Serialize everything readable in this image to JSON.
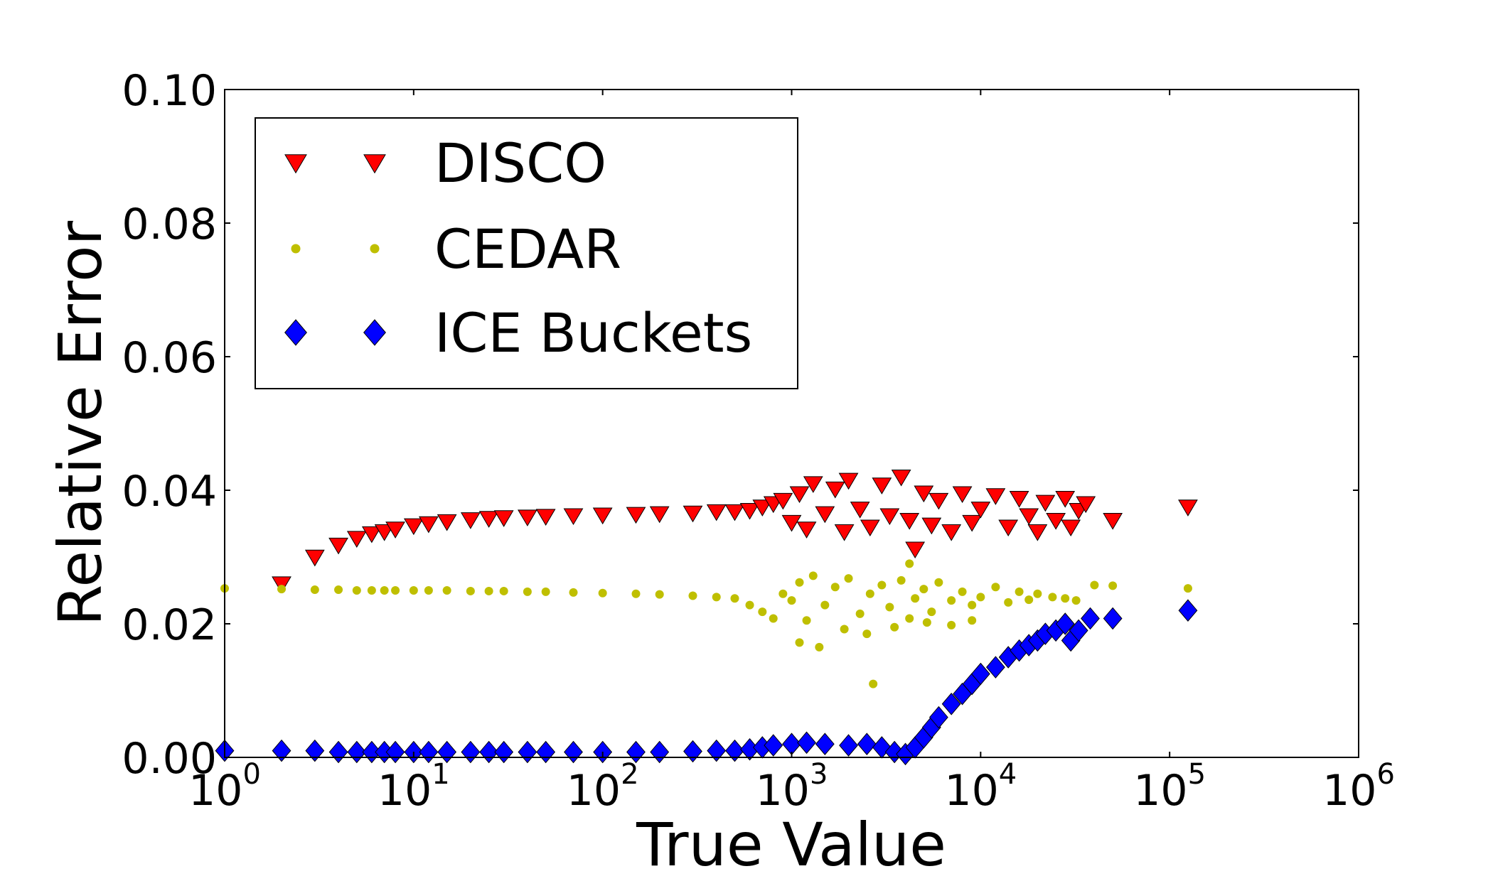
{
  "chart_data": {
    "type": "scatter",
    "title": "",
    "xlabel": "True Value",
    "ylabel": "Relative Error",
    "x_scale": "log",
    "xlim": [
      1,
      1000000
    ],
    "ylim": [
      0.0,
      0.1
    ],
    "grid": false,
    "legend_position": "top-left",
    "x_ticks": [
      {
        "value": 1,
        "base": "10",
        "exp": "0"
      },
      {
        "value": 10,
        "base": "10",
        "exp": "1"
      },
      {
        "value": 100,
        "base": "10",
        "exp": "2"
      },
      {
        "value": 1000,
        "base": "10",
        "exp": "3"
      },
      {
        "value": 10000,
        "base": "10",
        "exp": "4"
      },
      {
        "value": 100000,
        "base": "10",
        "exp": "5"
      },
      {
        "value": 1000000,
        "base": "10",
        "exp": "6"
      }
    ],
    "y_ticks": [
      {
        "value": 0.0,
        "label": "0.00"
      },
      {
        "value": 0.02,
        "label": "0.02"
      },
      {
        "value": 0.04,
        "label": "0.04"
      },
      {
        "value": 0.06,
        "label": "0.06"
      },
      {
        "value": 0.08,
        "label": "0.08"
      },
      {
        "value": 0.1,
        "label": "0.10"
      }
    ],
    "series": [
      {
        "name": "DISCO",
        "marker": "triangle-down",
        "color": "#ff0000",
        "points": [
          [
            2,
            0.026
          ],
          [
            3,
            0.03
          ],
          [
            4,
            0.0318
          ],
          [
            5,
            0.0328
          ],
          [
            6,
            0.0335
          ],
          [
            7,
            0.0338
          ],
          [
            8,
            0.0342
          ],
          [
            10,
            0.0347
          ],
          [
            12,
            0.035
          ],
          [
            15,
            0.0353
          ],
          [
            20,
            0.0356
          ],
          [
            25,
            0.0358
          ],
          [
            30,
            0.0359
          ],
          [
            40,
            0.036
          ],
          [
            50,
            0.0361
          ],
          [
            70,
            0.0362
          ],
          [
            100,
            0.0363
          ],
          [
            150,
            0.0364
          ],
          [
            200,
            0.0365
          ],
          [
            300,
            0.0366
          ],
          [
            400,
            0.0368
          ],
          [
            500,
            0.0368
          ],
          [
            600,
            0.037
          ],
          [
            700,
            0.0375
          ],
          [
            800,
            0.038
          ],
          [
            900,
            0.0385
          ],
          [
            1000,
            0.0352
          ],
          [
            1100,
            0.0395
          ],
          [
            1200,
            0.0342
          ],
          [
            1300,
            0.041
          ],
          [
            1500,
            0.0365
          ],
          [
            1700,
            0.0402
          ],
          [
            1900,
            0.0338
          ],
          [
            2000,
            0.0415
          ],
          [
            2300,
            0.0372
          ],
          [
            2600,
            0.0345
          ],
          [
            3000,
            0.0408
          ],
          [
            3300,
            0.0362
          ],
          [
            3800,
            0.042
          ],
          [
            4200,
            0.0355
          ],
          [
            4500,
            0.0312
          ],
          [
            5000,
            0.0396
          ],
          [
            5500,
            0.0348
          ],
          [
            6000,
            0.0385
          ],
          [
            7000,
            0.0338
          ],
          [
            8000,
            0.0395
          ],
          [
            9000,
            0.0352
          ],
          [
            10000,
            0.0372
          ],
          [
            12000,
            0.0392
          ],
          [
            14000,
            0.0345
          ],
          [
            16000,
            0.0388
          ],
          [
            18000,
            0.0362
          ],
          [
            20000,
            0.0338
          ],
          [
            22000,
            0.0382
          ],
          [
            25000,
            0.0355
          ],
          [
            28000,
            0.0388
          ],
          [
            30000,
            0.0345
          ],
          [
            33000,
            0.037
          ],
          [
            36000,
            0.038
          ],
          [
            50000,
            0.0355
          ],
          [
            125000,
            0.0375
          ]
        ]
      },
      {
        "name": "CEDAR",
        "marker": "circle",
        "color": "#bfbf00",
        "points": [
          [
            1,
            0.0253
          ],
          [
            2,
            0.0252
          ],
          [
            3,
            0.0251
          ],
          [
            4,
            0.0251
          ],
          [
            5,
            0.025
          ],
          [
            6,
            0.025
          ],
          [
            7,
            0.025
          ],
          [
            8,
            0.025
          ],
          [
            10,
            0.025
          ],
          [
            12,
            0.025
          ],
          [
            15,
            0.025
          ],
          [
            20,
            0.0249
          ],
          [
            25,
            0.0249
          ],
          [
            30,
            0.0249
          ],
          [
            40,
            0.0248
          ],
          [
            50,
            0.0248
          ],
          [
            70,
            0.0247
          ],
          [
            100,
            0.0246
          ],
          [
            150,
            0.0245
          ],
          [
            200,
            0.0244
          ],
          [
            300,
            0.0242
          ],
          [
            400,
            0.024
          ],
          [
            500,
            0.0238
          ],
          [
            600,
            0.0228
          ],
          [
            700,
            0.0218
          ],
          [
            800,
            0.0208
          ],
          [
            900,
            0.0245
          ],
          [
            1000,
            0.0235
          ],
          [
            1100,
            0.0262
          ],
          [
            1200,
            0.0205
          ],
          [
            1300,
            0.0272
          ],
          [
            1500,
            0.0228
          ],
          [
            1700,
            0.0255
          ],
          [
            1900,
            0.0192
          ],
          [
            2000,
            0.0268
          ],
          [
            2300,
            0.0215
          ],
          [
            2600,
            0.0245
          ],
          [
            3000,
            0.0258
          ],
          [
            3300,
            0.0225
          ],
          [
            3800,
            0.0265
          ],
          [
            4200,
            0.0208
          ],
          [
            4500,
            0.0238
          ],
          [
            5000,
            0.0252
          ],
          [
            5500,
            0.0218
          ],
          [
            6000,
            0.0262
          ],
          [
            7000,
            0.0235
          ],
          [
            8000,
            0.0248
          ],
          [
            9000,
            0.0228
          ],
          [
            10000,
            0.024
          ],
          [
            12000,
            0.0255
          ],
          [
            14000,
            0.0232
          ],
          [
            16000,
            0.0248
          ],
          [
            18000,
            0.0236
          ],
          [
            20000,
            0.0245
          ],
          [
            24000,
            0.024
          ],
          [
            28000,
            0.0238
          ],
          [
            32000,
            0.0235
          ],
          [
            1100,
            0.0172
          ],
          [
            1400,
            0.0165
          ],
          [
            2500,
            0.0185
          ],
          [
            2700,
            0.011
          ],
          [
            3500,
            0.0195
          ],
          [
            5200,
            0.0202
          ],
          [
            7000,
            0.0198
          ],
          [
            9000,
            0.0205
          ],
          [
            4200,
            0.029
          ],
          [
            40000,
            0.0258
          ],
          [
            50000,
            0.0257
          ],
          [
            125000,
            0.0253
          ]
        ]
      },
      {
        "name": "ICE Buckets",
        "marker": "diamond",
        "color": "#0000ff",
        "points": [
          [
            1,
            0.001
          ],
          [
            2,
            0.001
          ],
          [
            3,
            0.001
          ],
          [
            4,
            0.0008
          ],
          [
            5,
            0.0008
          ],
          [
            6,
            0.0008
          ],
          [
            7,
            0.0008
          ],
          [
            8,
            0.0008
          ],
          [
            10,
            0.0008
          ],
          [
            12,
            0.0008
          ],
          [
            15,
            0.0008
          ],
          [
            20,
            0.0008
          ],
          [
            25,
            0.0008
          ],
          [
            30,
            0.0008
          ],
          [
            40,
            0.0008
          ],
          [
            50,
            0.0008
          ],
          [
            70,
            0.0008
          ],
          [
            100,
            0.0008
          ],
          [
            150,
            0.0008
          ],
          [
            200,
            0.0008
          ],
          [
            300,
            0.0009
          ],
          [
            400,
            0.001
          ],
          [
            500,
            0.001
          ],
          [
            600,
            0.0012
          ],
          [
            700,
            0.0015
          ],
          [
            800,
            0.0018
          ],
          [
            1000,
            0.002
          ],
          [
            1200,
            0.0022
          ],
          [
            1500,
            0.002
          ],
          [
            2000,
            0.0018
          ],
          [
            2500,
            0.002
          ],
          [
            3000,
            0.0015
          ],
          [
            3500,
            0.0008
          ],
          [
            4000,
            0.0005
          ],
          [
            4500,
            0.0015
          ],
          [
            5000,
            0.003
          ],
          [
            5500,
            0.0045
          ],
          [
            6000,
            0.006
          ],
          [
            7000,
            0.008
          ],
          [
            8000,
            0.0095
          ],
          [
            9000,
            0.011
          ],
          [
            10000,
            0.0125
          ],
          [
            12000,
            0.0135
          ],
          [
            14000,
            0.015
          ],
          [
            16000,
            0.016
          ],
          [
            18000,
            0.0168
          ],
          [
            20000,
            0.0175
          ],
          [
            22000,
            0.0185
          ],
          [
            25000,
            0.019
          ],
          [
            28000,
            0.02
          ],
          [
            30000,
            0.0175
          ],
          [
            33000,
            0.019
          ],
          [
            38000,
            0.0208
          ],
          [
            50000,
            0.0208
          ],
          [
            125000,
            0.022
          ]
        ]
      }
    ]
  }
}
